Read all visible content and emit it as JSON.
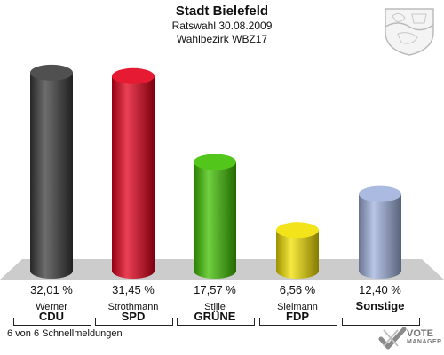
{
  "header": {
    "title": "Stadt Bielefeld",
    "subtitle1": "Ratswahl 30.08.2009",
    "subtitle2": "Wahlbezirk WBZ17"
  },
  "chart_data": {
    "type": "bar",
    "categories": [
      "CDU",
      "SPD",
      "GRÜNE",
      "FDP",
      "Sonstige"
    ],
    "candidates": [
      "Werner",
      "Strothmann",
      "Stille",
      "Sielmann",
      ""
    ],
    "values": [
      32.01,
      31.45,
      17.57,
      6.56,
      12.4
    ],
    "value_labels": [
      "32,01 %",
      "31,45 %",
      "17,57 %",
      "6,56 %",
      "12,40 %"
    ],
    "colors": [
      "#3c3c3c",
      "#e3001b",
      "#3fc000",
      "#f2e000",
      "#a0b2de"
    ],
    "ylim": [
      0,
      34
    ]
  },
  "footer": {
    "status": "6 von 6 Schnellmeldungen"
  },
  "logo": {
    "line1": "VOTE",
    "line2": "MANAGER",
    "icon": "vote-check-icon"
  },
  "crest": {
    "icon": "nrw-crest-icon"
  }
}
